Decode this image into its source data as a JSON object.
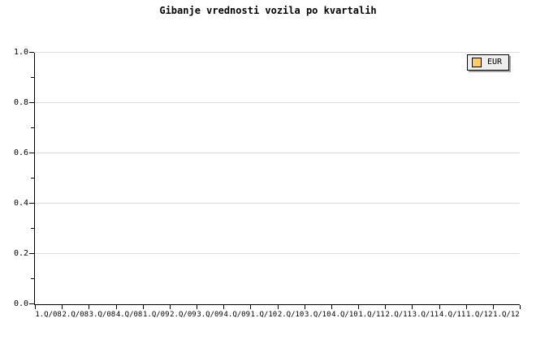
{
  "chart_data": {
    "type": "line",
    "title": "Gibanje vrednosti vozila po kvartalih",
    "categories": [
      "1.Q/08",
      "2.Q/08",
      "3.Q/08",
      "4.Q/08",
      "1.Q/09",
      "2.Q/09",
      "3.Q/09",
      "4.Q/09",
      "1.Q/10",
      "2.Q/10",
      "3.Q/10",
      "4.Q/10",
      "1.Q/11",
      "2.Q/11",
      "3.Q/11",
      "4.Q/11",
      "1.Q/12",
      "1.Q/12"
    ],
    "series": [
      {
        "name": "EUR",
        "color": "#FFCC66",
        "values": []
      }
    ],
    "ylim": [
      0.0,
      1.0
    ],
    "yticks_major": [
      1.0,
      0.8,
      0.6,
      0.4,
      0.2,
      0.0
    ],
    "ytick_labels": [
      "1.0",
      "0.8",
      "0.6",
      "0.4",
      "0.2",
      "0.0"
    ],
    "yticks_minor": [
      0.9,
      0.7,
      0.5,
      0.3,
      0.1
    ],
    "grid": true,
    "legend_position": "top-right"
  },
  "legend": {
    "items": [
      {
        "label": "EUR",
        "swatch_color": "#FFCC66"
      }
    ]
  },
  "colors": {
    "background": "#FFFFFF",
    "axis": "#000000",
    "gridline": "#DCDCDC",
    "text": "#000000",
    "legend_background": "#EEEEEE",
    "legend_border": "#000000",
    "legend_shadow": "#A6A6A6"
  }
}
